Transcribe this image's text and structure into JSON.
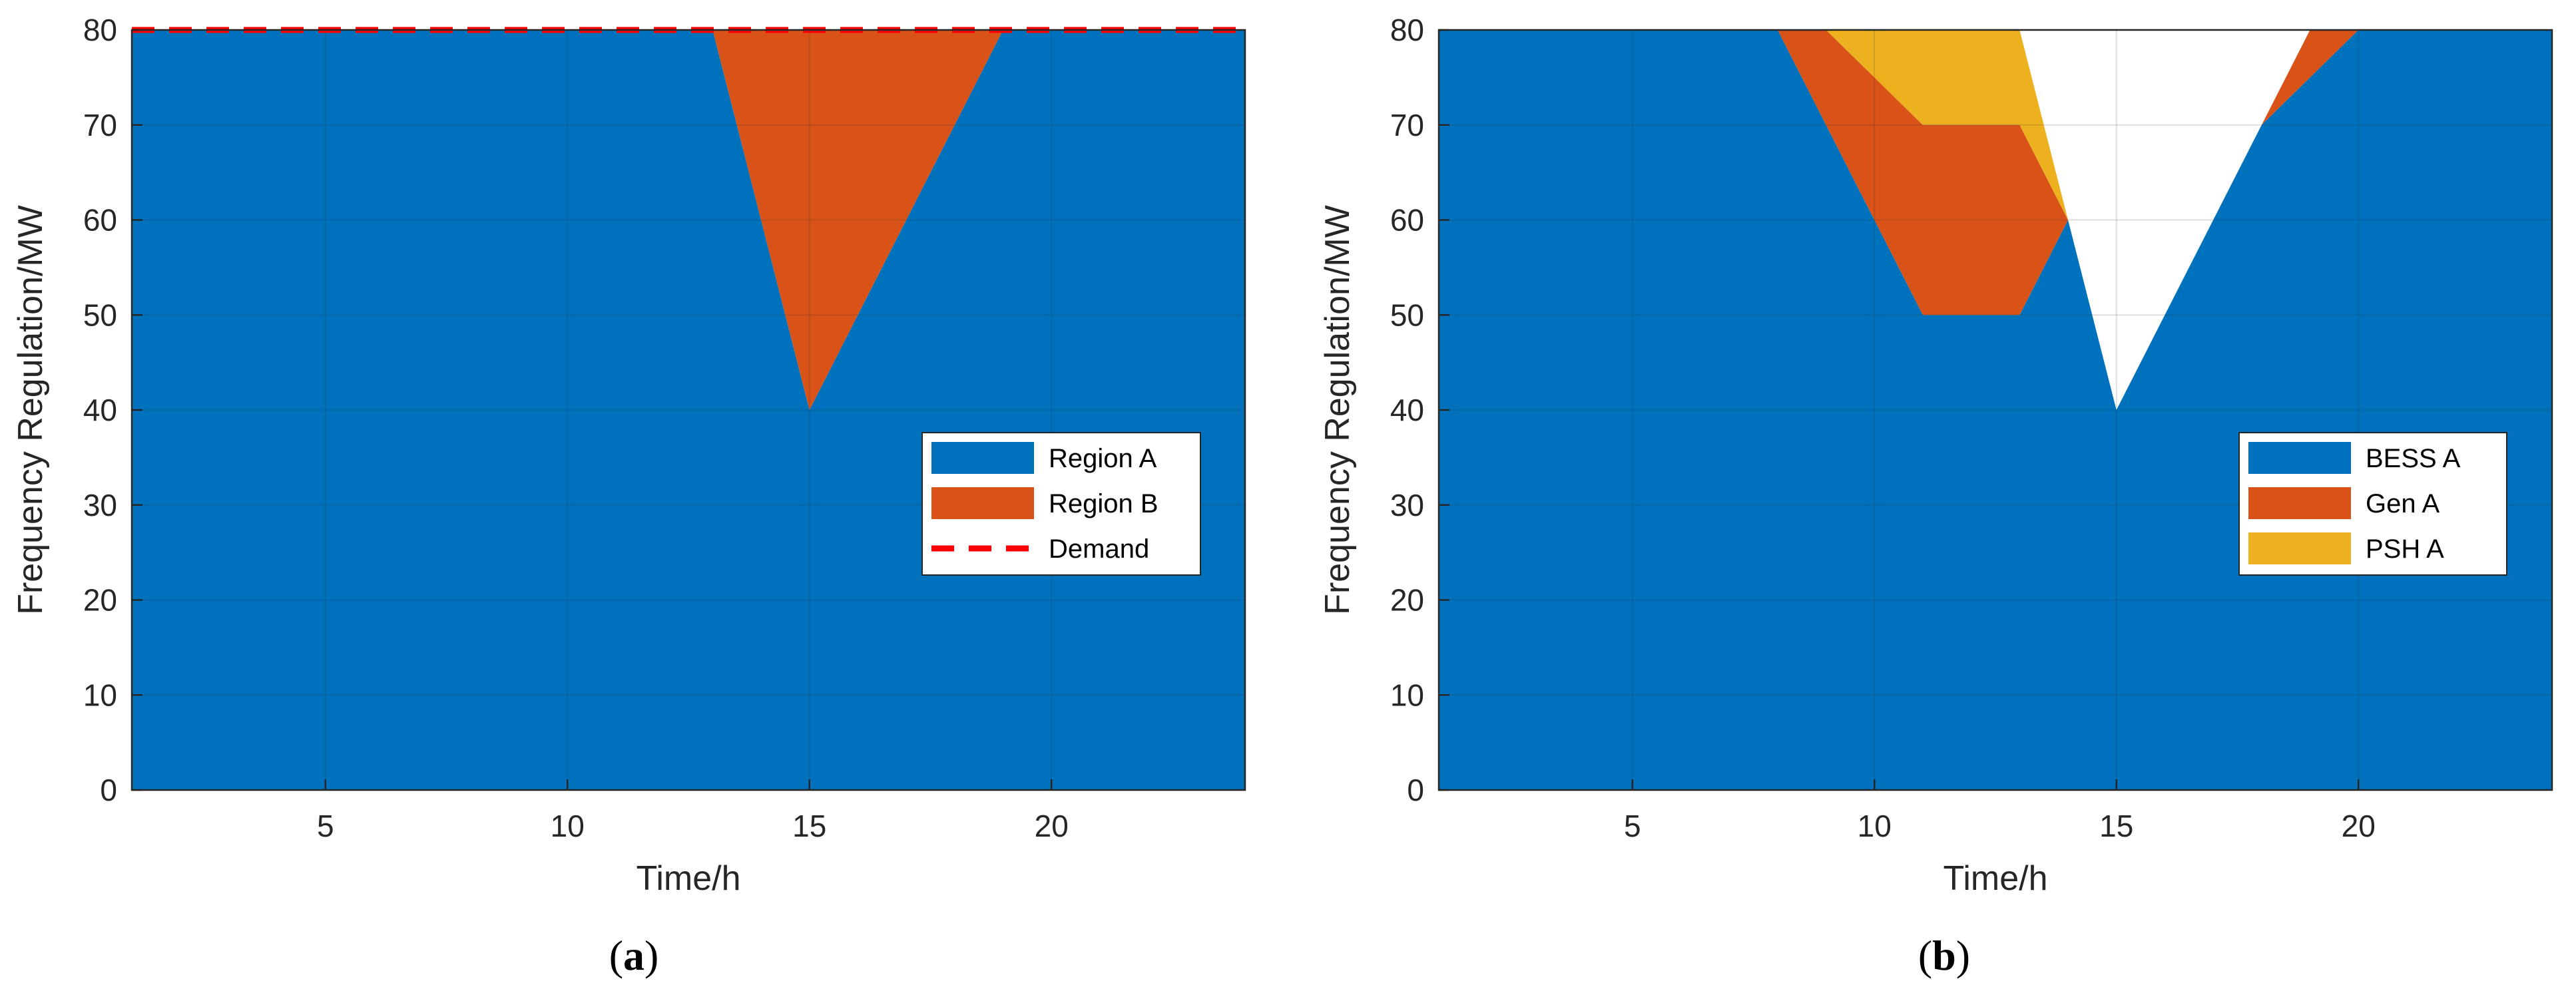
{
  "chart_data": [
    {
      "type": "area",
      "panel_label": "(a)",
      "panel_label_bold": "a",
      "xlabel": "Time/h",
      "ylabel": "Frequency Regulation/MW",
      "xlim": [
        1,
        24
      ],
      "ylim": [
        0,
        80
      ],
      "xticks": [
        5,
        10,
        15,
        20
      ],
      "yticks": [
        0,
        10,
        20,
        30,
        40,
        50,
        60,
        70,
        80
      ],
      "grid": true,
      "legend_position": "right",
      "x": [
        1,
        2,
        3,
        4,
        5,
        6,
        7,
        8,
        9,
        10,
        11,
        12,
        13,
        14,
        15,
        16,
        17,
        18,
        19,
        20,
        21,
        22,
        23,
        24
      ],
      "series": [
        {
          "name": "Region A",
          "color": "#0072BD",
          "kind": "stacked-area",
          "values": [
            80,
            80,
            80,
            80,
            80,
            80,
            80,
            80,
            80,
            80,
            80,
            80,
            80,
            60,
            40,
            50,
            60,
            70,
            80,
            80,
            80,
            80,
            80,
            80
          ]
        },
        {
          "name": "Region B",
          "color": "#D95319",
          "kind": "stacked-area",
          "values": [
            0,
            0,
            0,
            0,
            0,
            0,
            0,
            0,
            0,
            0,
            0,
            0,
            0,
            20,
            40,
            30,
            20,
            10,
            0,
            0,
            0,
            0,
            0,
            0
          ]
        },
        {
          "name": "Demand",
          "color": "#FF0000",
          "kind": "dashed-line",
          "values": [
            80,
            80,
            80,
            80,
            80,
            80,
            80,
            80,
            80,
            80,
            80,
            80,
            80,
            80,
            80,
            80,
            80,
            80,
            80,
            80,
            80,
            80,
            80,
            80
          ]
        }
      ]
    },
    {
      "type": "area",
      "panel_label": "(b)",
      "panel_label_bold": "b",
      "xlabel": "Time/h",
      "ylabel": "Frequency Regulation/MW",
      "xlim": [
        1,
        24
      ],
      "ylim": [
        0,
        80
      ],
      "xticks": [
        5,
        10,
        15,
        20
      ],
      "yticks": [
        0,
        10,
        20,
        30,
        40,
        50,
        60,
        70,
        80
      ],
      "grid": true,
      "legend_position": "right",
      "x": [
        1,
        2,
        3,
        4,
        5,
        6,
        7,
        8,
        9,
        10,
        11,
        12,
        13,
        14,
        15,
        16,
        17,
        18,
        19,
        20,
        21,
        22,
        23,
        24
      ],
      "series": [
        {
          "name": "BESS A",
          "color": "#0072BD",
          "kind": "stacked-area",
          "values": [
            80,
            80,
            80,
            80,
            80,
            80,
            80,
            80,
            70,
            60,
            50,
            50,
            50,
            60,
            40,
            50,
            60,
            70,
            75,
            80,
            80,
            80,
            80,
            80
          ]
        },
        {
          "name": "Gen A",
          "color": "#D95319",
          "kind": "stacked-area",
          "values": [
            0,
            0,
            0,
            0,
            0,
            0,
            0,
            0,
            10,
            15,
            20,
            20,
            20,
            0,
            0,
            0,
            0,
            0,
            5,
            0,
            0,
            0,
            0,
            0
          ]
        },
        {
          "name": "PSH A",
          "color": "#EDB120",
          "kind": "stacked-area",
          "values": [
            0,
            0,
            0,
            0,
            0,
            0,
            0,
            0,
            0,
            5,
            10,
            10,
            10,
            0,
            0,
            0,
            0,
            0,
            0,
            0,
            0,
            0,
            0,
            0
          ]
        }
      ]
    }
  ]
}
